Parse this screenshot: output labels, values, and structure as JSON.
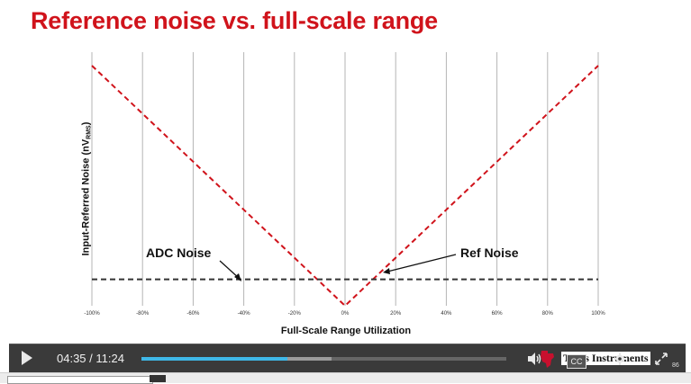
{
  "slide": {
    "title": "Reference noise vs. full-scale range",
    "annotations": {
      "adc_noise": "ADC Noise",
      "ref_noise": "Ref Noise"
    }
  },
  "chart_data": {
    "type": "line",
    "xlabel": "Full-Scale Range Utilization",
    "ylabel_main": "Input-Referred Noise (nV",
    "ylabel_sub": "RMS",
    "ylabel_end": ")",
    "x_tick_labels": [
      "-100%",
      "-80%",
      "-60%",
      "-40%",
      "-20%",
      "0%",
      "20%",
      "40%",
      "60%",
      "80%",
      "100%"
    ],
    "xlim": [
      -100,
      100
    ],
    "ylim": [
      0,
      100
    ],
    "grid": "vertical",
    "series": [
      {
        "name": "Ref Noise",
        "color": "#d0131b",
        "style": "dashed",
        "x": [
          -100,
          0,
          100
        ],
        "y": [
          100,
          0,
          100
        ]
      },
      {
        "name": "ADC Noise",
        "color": "#333333",
        "style": "dashed",
        "x": [
          -100,
          100
        ],
        "y": [
          11,
          11
        ]
      }
    ]
  },
  "player": {
    "current_time": "04:35",
    "separator": " / ",
    "duration": "11:24",
    "played_fraction": 0.4,
    "buffered_fraction": 0.52,
    "logo_text": "Texas Instruments",
    "cc_label": "CC",
    "counter": "86",
    "accent": "#3fb8e8"
  }
}
